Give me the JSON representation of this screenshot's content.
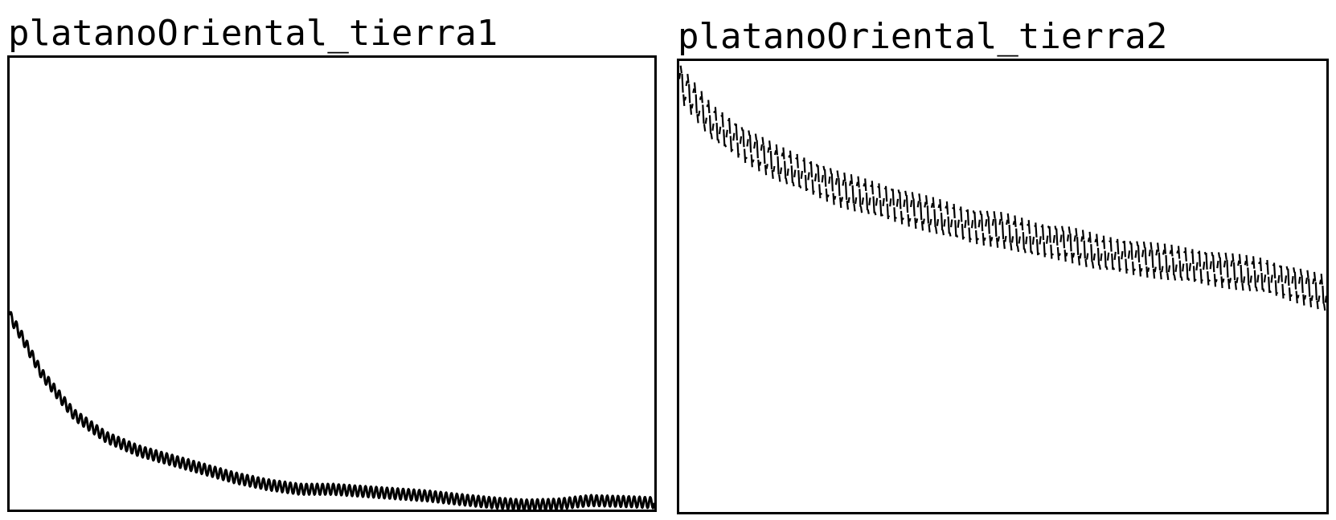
{
  "colors": {
    "line": "#000000",
    "frame": "#000000",
    "background": "#ffffff"
  },
  "chart_data": [
    {
      "type": "line",
      "title": "platanoOriental_tierra1",
      "xlabel": "",
      "ylabel": "",
      "grid": false,
      "axes_ticks_shown": false,
      "xlim": [
        0,
        1
      ],
      "ylim": [
        0,
        1
      ],
      "series": [
        {
          "style": "solid",
          "trend": [
            [
              0.0,
              0.43
            ],
            [
              0.02,
              0.38
            ],
            [
              0.05,
              0.3
            ],
            [
              0.1,
              0.21
            ],
            [
              0.15,
              0.16
            ],
            [
              0.2,
              0.13
            ],
            [
              0.25,
              0.11
            ],
            [
              0.3,
              0.09
            ],
            [
              0.35,
              0.07
            ],
            [
              0.4,
              0.055
            ],
            [
              0.45,
              0.045
            ],
            [
              0.5,
              0.045
            ],
            [
              0.55,
              0.04
            ],
            [
              0.6,
              0.035
            ],
            [
              0.65,
              0.03
            ],
            [
              0.7,
              0.022
            ],
            [
              0.75,
              0.015
            ],
            [
              0.8,
              0.01
            ],
            [
              0.85,
              0.012
            ],
            [
              0.9,
              0.02
            ],
            [
              0.95,
              0.018
            ],
            [
              1.0,
              0.015
            ]
          ],
          "oscillation": {
            "cycles": 120,
            "amplitude": 0.012
          }
        }
      ]
    },
    {
      "type": "line",
      "title": "platanoOriental_tierra2",
      "xlabel": "",
      "ylabel": "",
      "grid": false,
      "axes_ticks_shown": false,
      "xlim": [
        0,
        1
      ],
      "ylim": [
        0,
        1
      ],
      "series": [
        {
          "style": "broken",
          "trend": [
            [
              0.0,
              0.96
            ],
            [
              0.05,
              0.87
            ],
            [
              0.1,
              0.82
            ],
            [
              0.15,
              0.78
            ],
            [
              0.2,
              0.75
            ],
            [
              0.25,
              0.72
            ],
            [
              0.3,
              0.7
            ],
            [
              0.35,
              0.68
            ],
            [
              0.4,
              0.66
            ],
            [
              0.45,
              0.64
            ],
            [
              0.5,
              0.63
            ],
            [
              0.55,
              0.61
            ],
            [
              0.6,
              0.6
            ],
            [
              0.65,
              0.58
            ],
            [
              0.7,
              0.57
            ],
            [
              0.75,
              0.56
            ],
            [
              0.8,
              0.55
            ],
            [
              0.85,
              0.54
            ],
            [
              0.9,
              0.53
            ],
            [
              0.95,
              0.51
            ],
            [
              1.0,
              0.49
            ]
          ],
          "oscillation": {
            "cycles": 95,
            "amplitude": 0.035
          }
        }
      ]
    }
  ]
}
